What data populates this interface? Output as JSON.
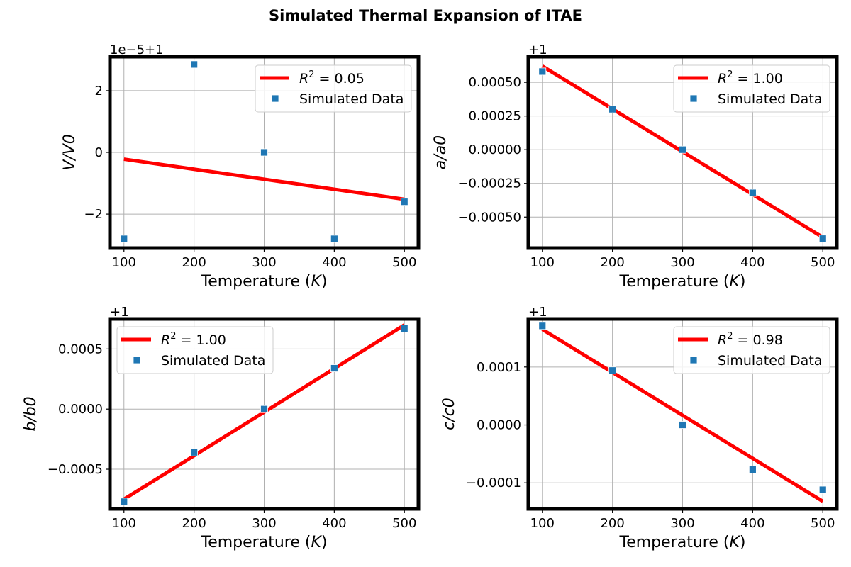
{
  "figure": {
    "title": "Simulated Thermal Expansion of ITAE"
  },
  "chart_data": [
    {
      "type": "scatter",
      "offset_label": "1e−5+1",
      "xlabel": "Temperature",
      "xunit": "K",
      "ylabel": "V/V0",
      "xlim": [
        80,
        520
      ],
      "ylim": [
        -3.1,
        3.1
      ],
      "x_ticks": [
        100,
        200,
        300,
        400,
        500
      ],
      "y_ticks": [
        2,
        0,
        -2
      ],
      "y_tick_labels": [
        "2",
        "0",
        "−2"
      ],
      "grid": true,
      "legend_position": "top-right",
      "fit": {
        "name": "R² = 0.05",
        "r2_text": "0.05",
        "x": [
          100,
          500
        ],
        "y": [
          -0.22,
          -1.52
        ],
        "color": "#ff0000"
      },
      "series": [
        {
          "name": "Simulated Data",
          "x": [
            100,
            200,
            300,
            400,
            500
          ],
          "y": [
            -2.8,
            2.85,
            0,
            -2.8,
            -1.6
          ],
          "color": "#1f77b4"
        }
      ]
    },
    {
      "type": "scatter",
      "offset_label": "+1",
      "xlabel": "Temperature",
      "xunit": "K",
      "ylabel": "a/a0",
      "xlim": [
        80,
        520
      ],
      "ylim": [
        -0.00073,
        0.00069
      ],
      "x_ticks": [
        100,
        200,
        300,
        400,
        500
      ],
      "y_ticks": [
        0.0005,
        0.00025,
        0,
        -0.00025,
        -0.0005
      ],
      "y_tick_labels": [
        "0.00050",
        "0.00025",
        "0.00000",
        "−0.00025",
        "−0.00050"
      ],
      "grid": true,
      "legend_position": "top-right",
      "fit": {
        "name": "R² = 1.00",
        "r2_text": "1.00",
        "x": [
          100,
          500
        ],
        "y": [
          0.00062,
          -0.00065
        ],
        "color": "#ff0000"
      },
      "series": [
        {
          "name": "Simulated Data",
          "x": [
            100,
            200,
            300,
            400,
            500
          ],
          "y": [
            0.00058,
            0.0003,
            0,
            -0.00032,
            -0.00066
          ],
          "color": "#1f77b4"
        }
      ]
    },
    {
      "type": "scatter",
      "offset_label": "+1",
      "xlabel": "Temperature",
      "xunit": "K",
      "ylabel": "b/b0",
      "xlim": [
        80,
        520
      ],
      "ylim": [
        -0.00083,
        0.00075
      ],
      "x_ticks": [
        100,
        200,
        300,
        400,
        500
      ],
      "y_ticks": [
        0.0005,
        0,
        -0.0005
      ],
      "y_tick_labels": [
        "0.0005",
        "0.0000",
        "−0.0005"
      ],
      "grid": true,
      "legend_position": "top-left",
      "fit": {
        "name": "R² = 1.00",
        "r2_text": "1.00",
        "x": [
          100,
          500
        ],
        "y": [
          -0.00075,
          0.0007
        ],
        "color": "#ff0000"
      },
      "series": [
        {
          "name": "Simulated Data",
          "x": [
            100,
            200,
            300,
            400,
            500
          ],
          "y": [
            -0.00077,
            -0.00036,
            0,
            0.00034,
            0.00067
          ],
          "color": "#1f77b4"
        }
      ]
    },
    {
      "type": "scatter",
      "offset_label": "+1",
      "xlabel": "Temperature",
      "xunit": "K",
      "ylabel": "c/c0",
      "xlim": [
        80,
        520
      ],
      "ylim": [
        -0.000145,
        0.000183
      ],
      "x_ticks": [
        100,
        200,
        300,
        400,
        500
      ],
      "y_ticks": [
        0.0001,
        0,
        -0.0001
      ],
      "y_tick_labels": [
        "0.0001",
        "0.0000",
        "−0.0001"
      ],
      "grid": true,
      "legend_position": "top-right",
      "fit": {
        "name": "R² = 0.98",
        "r2_text": "0.98",
        "x": [
          100,
          500
        ],
        "y": [
          0.000165,
          -0.000132
        ],
        "color": "#ff0000"
      },
      "series": [
        {
          "name": "Simulated Data",
          "x": [
            100,
            200,
            300,
            400,
            500
          ],
          "y": [
            0.000171,
            9.4e-05,
            0,
            -7.7e-05,
            -0.000112
          ],
          "color": "#1f77b4"
        }
      ]
    }
  ]
}
